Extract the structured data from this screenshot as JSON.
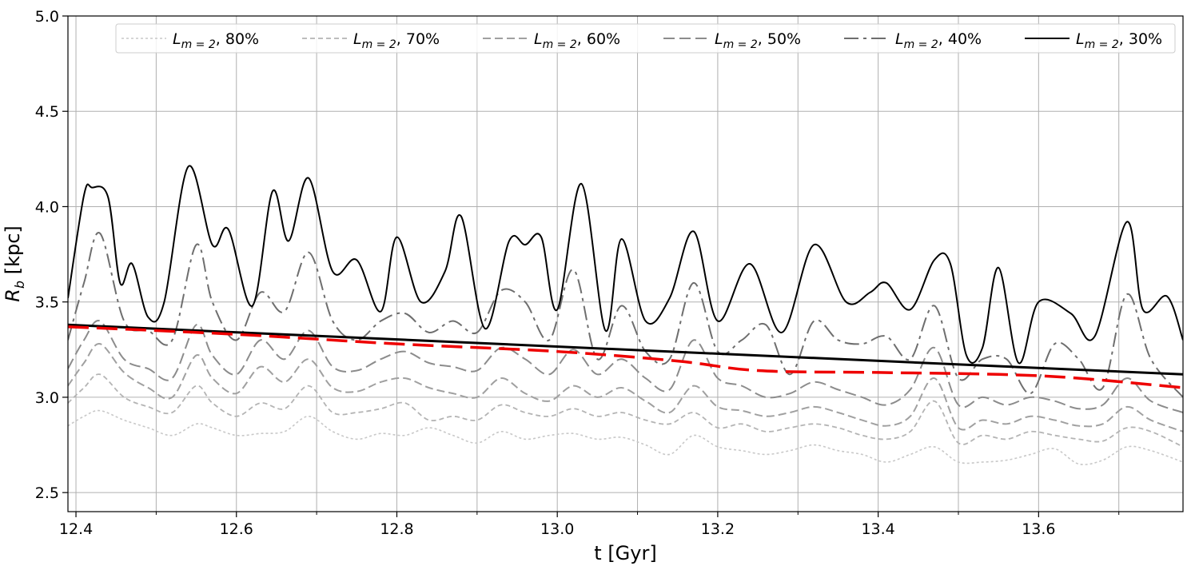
{
  "chart_data": {
    "type": "line",
    "xlabel": "t [Gyr]",
    "ylabel": "R_b [kpc]",
    "ylabel_main": "R",
    "ylabel_sub": "b",
    "ylabel_unit": " [kpc]",
    "xlim": [
      12.39,
      13.78
    ],
    "ylim": [
      2.4,
      5.0
    ],
    "xticks": [
      12.4,
      12.6,
      12.8,
      13.0,
      13.2,
      13.4,
      13.6
    ],
    "xtick_labels": [
      "12.4",
      "12.6",
      "12.8",
      "13.0",
      "13.2",
      "13.4",
      "13.6"
    ],
    "xminor_ticks": [
      12.5,
      12.7,
      12.9,
      13.1,
      13.3,
      13.5,
      13.7
    ],
    "yticks": [
      2.5,
      3.0,
      3.5,
      4.0,
      4.5,
      5.0
    ],
    "ytick_labels": [
      "2.5",
      "3.0",
      "3.5",
      "4.0",
      "4.5",
      "5.0"
    ],
    "grid": true,
    "legend_position": "top",
    "series": [
      {
        "name": "L_{m=2}, 80%",
        "legend_main": "L",
        "legend_sub": "m = 2",
        "legend_pct": ", 80%",
        "color": "#c8c8c8",
        "dash": "3,3",
        "width": 1.6,
        "x": [
          12.39,
          12.41,
          12.43,
          12.46,
          12.49,
          12.52,
          12.55,
          12.57,
          12.6,
          12.63,
          12.66,
          12.69,
          12.72,
          12.75,
          12.78,
          12.81,
          12.84,
          12.87,
          12.9,
          12.93,
          12.96,
          12.99,
          13.02,
          13.05,
          13.08,
          13.11,
          13.14,
          13.17,
          13.2,
          13.23,
          13.26,
          13.29,
          13.32,
          13.35,
          13.38,
          13.41,
          13.44,
          13.47,
          13.5,
          13.53,
          13.56,
          13.59,
          13.62,
          13.65,
          13.68,
          13.71,
          13.74,
          13.78
        ],
        "y": [
          2.85,
          2.9,
          2.93,
          2.88,
          2.84,
          2.8,
          2.86,
          2.84,
          2.8,
          2.81,
          2.82,
          2.9,
          2.82,
          2.78,
          2.81,
          2.8,
          2.84,
          2.8,
          2.76,
          2.82,
          2.78,
          2.8,
          2.81,
          2.78,
          2.79,
          2.75,
          2.7,
          2.8,
          2.74,
          2.72,
          2.7,
          2.72,
          2.75,
          2.72,
          2.7,
          2.66,
          2.7,
          2.74,
          2.66,
          2.66,
          2.67,
          2.7,
          2.73,
          2.65,
          2.67,
          2.74,
          2.72,
          2.66
        ]
      },
      {
        "name": "L_{m=2}, 70%",
        "legend_main": "L",
        "legend_sub": "m = 2",
        "legend_pct": ", 70%",
        "color": "#b4b4b4",
        "dash": "6,4",
        "width": 1.8,
        "x": [
          12.39,
          12.41,
          12.43,
          12.46,
          12.49,
          12.52,
          12.55,
          12.57,
          12.6,
          12.63,
          12.66,
          12.69,
          12.72,
          12.75,
          12.78,
          12.81,
          12.84,
          12.87,
          12.9,
          12.93,
          12.96,
          12.99,
          13.02,
          13.05,
          13.08,
          13.11,
          13.14,
          13.17,
          13.2,
          13.23,
          13.26,
          13.29,
          13.32,
          13.35,
          13.38,
          13.41,
          13.44,
          13.47,
          13.5,
          13.53,
          13.56,
          13.59,
          13.62,
          13.65,
          13.68,
          13.71,
          13.74,
          13.78
        ],
        "y": [
          2.97,
          3.05,
          3.12,
          3.0,
          2.95,
          2.92,
          3.06,
          2.97,
          2.9,
          2.97,
          2.94,
          3.06,
          2.92,
          2.92,
          2.94,
          2.97,
          2.88,
          2.9,
          2.88,
          2.96,
          2.92,
          2.9,
          2.94,
          2.9,
          2.92,
          2.88,
          2.86,
          2.92,
          2.84,
          2.86,
          2.82,
          2.84,
          2.86,
          2.84,
          2.8,
          2.78,
          2.82,
          2.98,
          2.76,
          2.8,
          2.78,
          2.82,
          2.8,
          2.78,
          2.77,
          2.84,
          2.82,
          2.74
        ]
      },
      {
        "name": "L_{m=2}, 60%",
        "legend_main": "L",
        "legend_sub": "m = 2",
        "legend_pct": ", 60%",
        "color": "#a0a0a0",
        "dash": "10,5",
        "width": 2,
        "x": [
          12.39,
          12.41,
          12.43,
          12.46,
          12.49,
          12.52,
          12.55,
          12.57,
          12.6,
          12.63,
          12.66,
          12.69,
          12.72,
          12.75,
          12.78,
          12.81,
          12.84,
          12.87,
          12.9,
          12.93,
          12.96,
          12.99,
          13.02,
          13.05,
          13.08,
          13.11,
          13.14,
          13.17,
          13.2,
          13.23,
          13.26,
          13.29,
          13.32,
          13.35,
          13.38,
          13.41,
          13.44,
          13.47,
          13.5,
          13.53,
          13.56,
          13.59,
          13.62,
          13.65,
          13.68,
          13.71,
          13.74,
          13.78
        ],
        "y": [
          3.06,
          3.18,
          3.28,
          3.13,
          3.05,
          3.0,
          3.22,
          3.1,
          3.02,
          3.16,
          3.08,
          3.2,
          3.05,
          3.03,
          3.08,
          3.1,
          3.05,
          3.02,
          3.0,
          3.1,
          3.02,
          2.98,
          3.06,
          3.0,
          3.05,
          2.98,
          2.92,
          3.06,
          2.95,
          2.93,
          2.9,
          2.92,
          2.95,
          2.92,
          2.88,
          2.85,
          2.9,
          3.1,
          2.84,
          2.88,
          2.86,
          2.9,
          2.88,
          2.85,
          2.86,
          2.95,
          2.88,
          2.82
        ]
      },
      {
        "name": "L_{m=2}, 50%",
        "legend_main": "L",
        "legend_sub": "m = 2",
        "legend_pct": ", 50%",
        "color": "#8c8c8c",
        "dash": "14,6",
        "width": 2,
        "x": [
          12.39,
          12.41,
          12.43,
          12.46,
          12.49,
          12.52,
          12.55,
          12.57,
          12.6,
          12.63,
          12.66,
          12.69,
          12.72,
          12.75,
          12.78,
          12.81,
          12.84,
          12.87,
          12.9,
          12.93,
          12.96,
          12.99,
          13.02,
          13.05,
          13.08,
          13.11,
          13.14,
          13.17,
          13.2,
          13.23,
          13.26,
          13.29,
          13.32,
          13.35,
          13.38,
          13.41,
          13.44,
          13.47,
          13.5,
          13.53,
          13.56,
          13.59,
          13.62,
          13.65,
          13.68,
          13.71,
          13.74,
          13.78
        ],
        "y": [
          3.15,
          3.3,
          3.4,
          3.2,
          3.15,
          3.1,
          3.38,
          3.22,
          3.12,
          3.3,
          3.2,
          3.35,
          3.16,
          3.14,
          3.2,
          3.24,
          3.18,
          3.16,
          3.14,
          3.26,
          3.2,
          3.12,
          3.25,
          3.12,
          3.2,
          3.1,
          3.04,
          3.3,
          3.1,
          3.06,
          3.0,
          3.02,
          3.08,
          3.04,
          3.0,
          2.96,
          3.04,
          3.26,
          2.96,
          3.0,
          2.96,
          3.0,
          2.98,
          2.94,
          2.96,
          3.1,
          2.98,
          2.92
        ]
      },
      {
        "name": "L_{m=2}, 40%",
        "legend_main": "L",
        "legend_sub": "m = 2",
        "legend_pct": ", 40%",
        "color": "#6e6e6e",
        "dash": "18,6,4,6",
        "width": 2,
        "x": [
          12.39,
          12.41,
          12.43,
          12.46,
          12.49,
          12.52,
          12.55,
          12.57,
          12.6,
          12.63,
          12.66,
          12.69,
          12.72,
          12.75,
          12.78,
          12.81,
          12.84,
          12.87,
          12.9,
          12.93,
          12.96,
          12.99,
          13.02,
          13.05,
          13.08,
          13.11,
          13.14,
          13.17,
          13.2,
          13.23,
          13.26,
          13.29,
          13.32,
          13.35,
          13.38,
          13.41,
          13.44,
          13.47,
          13.5,
          13.53,
          13.56,
          13.59,
          13.62,
          13.65,
          13.68,
          13.71,
          13.74,
          13.78
        ],
        "y": [
          3.3,
          3.6,
          3.86,
          3.4,
          3.35,
          3.3,
          3.8,
          3.5,
          3.3,
          3.55,
          3.45,
          3.76,
          3.4,
          3.3,
          3.4,
          3.44,
          3.34,
          3.4,
          3.34,
          3.56,
          3.5,
          3.3,
          3.67,
          3.2,
          3.48,
          3.24,
          3.2,
          3.6,
          3.24,
          3.3,
          3.38,
          3.12,
          3.4,
          3.3,
          3.28,
          3.32,
          3.2,
          3.48,
          3.1,
          3.2,
          3.2,
          3.02,
          3.28,
          3.2,
          3.05,
          3.54,
          3.2,
          3.0
        ]
      },
      {
        "name": "L_{m=2}, 30%",
        "legend_main": "L",
        "legend_sub": "m = 2",
        "legend_pct": ", 30%",
        "color": "#000000",
        "dash": "",
        "width": 2,
        "x": [
          12.39,
          12.41,
          12.42,
          12.44,
          12.455,
          12.47,
          12.49,
          12.51,
          12.54,
          12.57,
          12.59,
          12.62,
          12.645,
          12.665,
          12.69,
          12.72,
          12.75,
          12.78,
          12.8,
          12.83,
          12.86,
          12.88,
          12.91,
          12.94,
          12.96,
          12.98,
          13.0,
          13.03,
          13.06,
          13.08,
          13.11,
          13.14,
          13.17,
          13.2,
          13.24,
          13.28,
          13.32,
          13.36,
          13.39,
          13.41,
          13.44,
          13.47,
          13.49,
          13.51,
          13.53,
          13.55,
          13.575,
          13.6,
          13.64,
          13.67,
          13.71,
          13.73,
          13.76,
          13.78
        ],
        "y": [
          3.52,
          4.06,
          4.1,
          4.05,
          3.6,
          3.7,
          3.42,
          3.5,
          4.21,
          3.8,
          3.88,
          3.48,
          4.08,
          3.82,
          4.15,
          3.66,
          3.72,
          3.45,
          3.84,
          3.5,
          3.66,
          3.95,
          3.36,
          3.82,
          3.8,
          3.84,
          3.46,
          4.12,
          3.35,
          3.83,
          3.4,
          3.52,
          3.87,
          3.4,
          3.7,
          3.34,
          3.8,
          3.5,
          3.55,
          3.6,
          3.46,
          3.72,
          3.7,
          3.22,
          3.26,
          3.68,
          3.18,
          3.5,
          3.44,
          3.32,
          3.92,
          3.46,
          3.53,
          3.3
        ]
      },
      {
        "name": "trend (black)",
        "legend_main": "",
        "legend_sub": "",
        "legend_pct": "",
        "color": "#000000",
        "dash": "",
        "width": 3,
        "in_legend": false,
        "x": [
          12.39,
          13.78
        ],
        "y": [
          3.38,
          3.12
        ]
      },
      {
        "name": "trend (red dashed)",
        "legend_main": "",
        "legend_sub": "",
        "legend_pct": "",
        "color": "#ee0000",
        "dash": "26,10",
        "width": 3.5,
        "in_legend": false,
        "x": [
          12.39,
          12.6,
          12.8,
          13.0,
          13.15,
          13.25,
          13.4,
          13.55,
          13.65,
          13.78
        ],
        "y": [
          3.37,
          3.33,
          3.28,
          3.24,
          3.19,
          3.14,
          3.13,
          3.12,
          3.1,
          3.05
        ]
      }
    ]
  }
}
